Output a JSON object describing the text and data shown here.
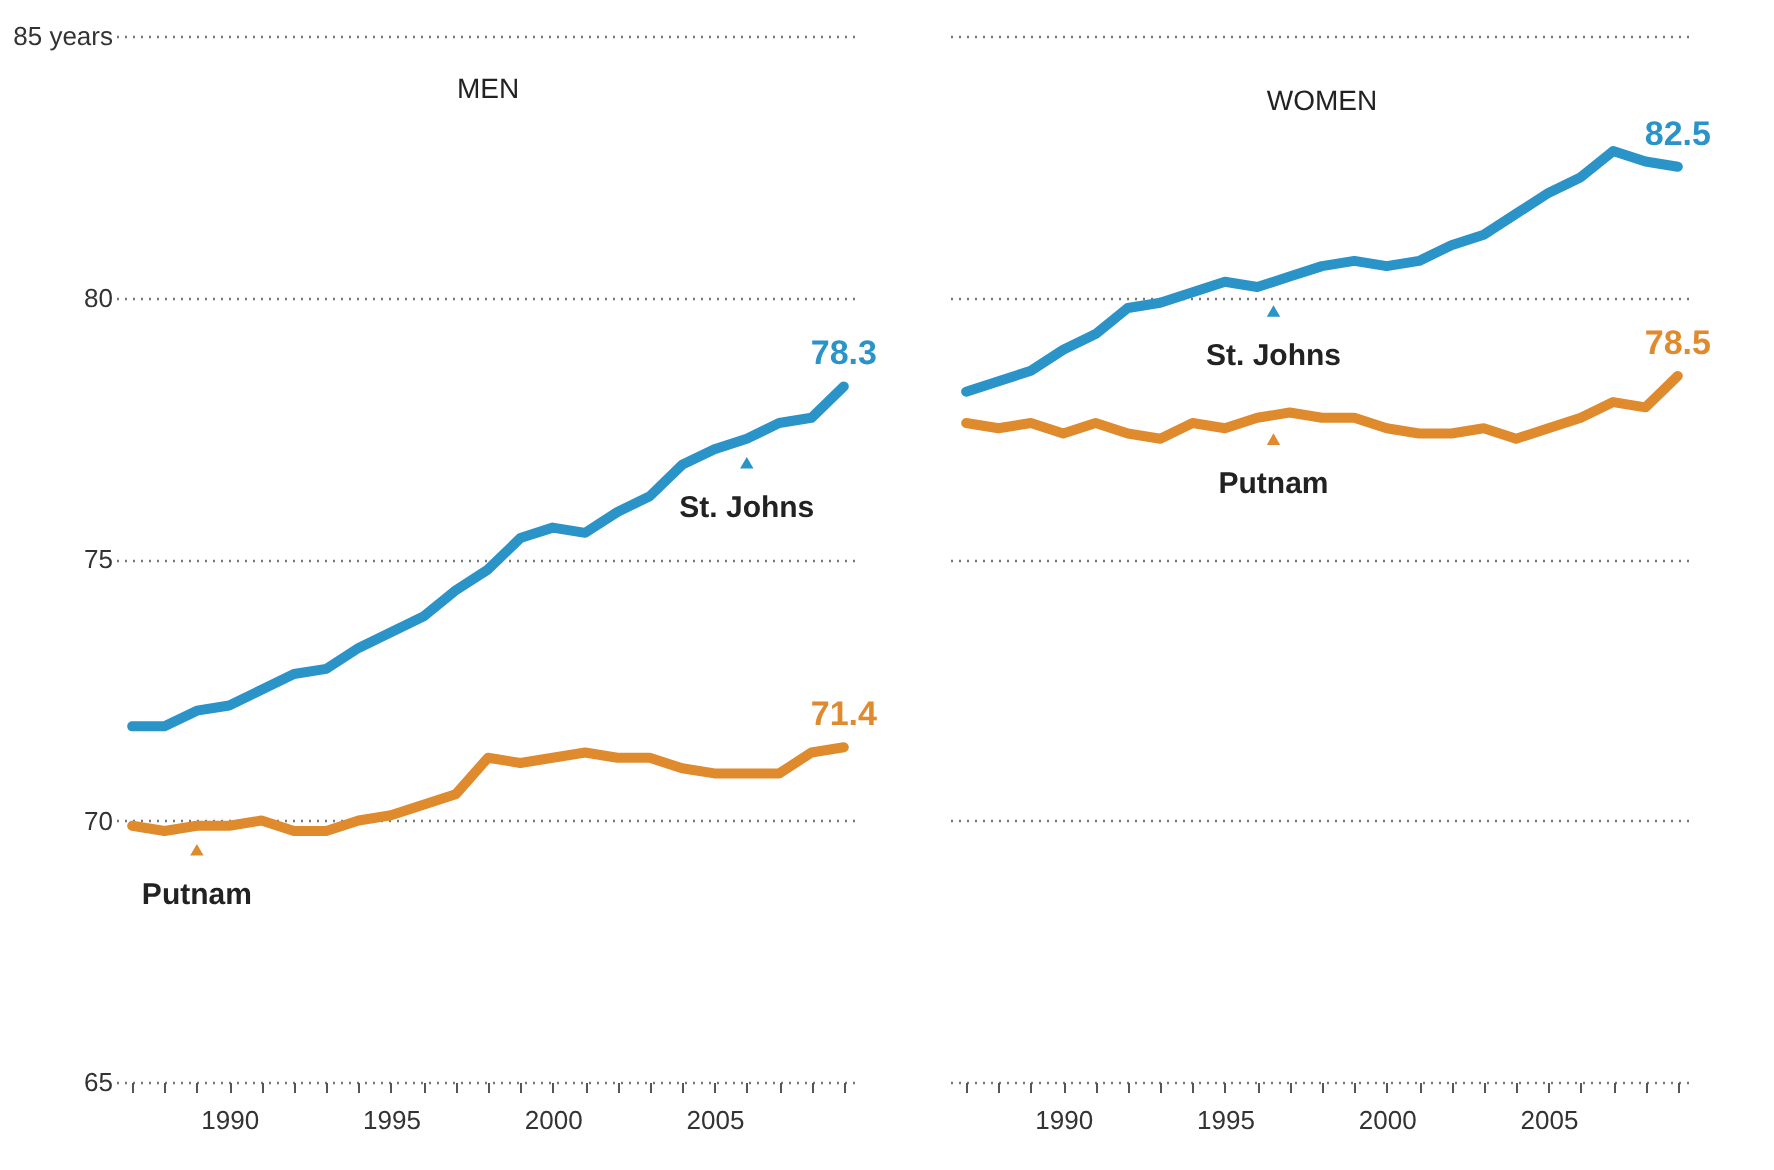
{
  "chart_data": [
    {
      "type": "line",
      "title": "MEN",
      "x": [
        1987,
        1988,
        1989,
        1990,
        1991,
        1992,
        1993,
        1994,
        1995,
        1996,
        1997,
        1998,
        1999,
        2000,
        2001,
        2002,
        2003,
        2004,
        2005,
        2006,
        2007,
        2008,
        2009
      ],
      "series": [
        {
          "color": "#2a93c8",
          "values": [
            71.8,
            71.8,
            72.1,
            72.2,
            72.5,
            72.8,
            72.9,
            73.3,
            73.6,
            73.9,
            74.4,
            74.8,
            75.4,
            75.6,
            75.5,
            75.9,
            76.2,
            76.8,
            77.1,
            77.3,
            77.6,
            77.7,
            78.3
          ],
          "value_labels": [
            null,
            null,
            null,
            null,
            null,
            null,
            null,
            null,
            null,
            null,
            null,
            null,
            null,
            null,
            null,
            null,
            null,
            null,
            null,
            null,
            null,
            null,
            "78.3"
          ]
        },
        {
          "color": "#e08a2e",
          "values": [
            69.9,
            69.8,
            69.9,
            69.9,
            70.0,
            69.8,
            69.8,
            70.0,
            70.1,
            70.3,
            70.5,
            71.2,
            71.1,
            71.2,
            71.3,
            71.2,
            71.2,
            71.0,
            70.9,
            70.9,
            70.9,
            71.3,
            71.4
          ],
          "value_labels": [
            null,
            null,
            null,
            null,
            null,
            null,
            null,
            null,
            null,
            null,
            null,
            null,
            null,
            null,
            null,
            null,
            null,
            null,
            null,
            null,
            null,
            null,
            "71.4"
          ]
        }
      ],
      "annotations": [
        {
          "text": "St. Johns",
          "x": 2006,
          "y": 77.3
        },
        {
          "text": "Putnam",
          "x": 1989,
          "y": 69.9
        }
      ],
      "xlim": [
        1986.5,
        2009.5
      ],
      "xticks": [
        {
          "value": 1987,
          "label": null
        },
        {
          "value": 1988,
          "label": null
        },
        {
          "value": 1989,
          "label": null
        },
        1990,
        {
          "value": 1991,
          "label": null
        },
        {
          "value": 1992,
          "label": null
        },
        {
          "value": 1993,
          "label": null
        },
        {
          "value": 1994,
          "label": null
        },
        1995,
        {
          "value": 1996,
          "label": null
        },
        {
          "value": 1997,
          "label": null
        },
        {
          "value": 1998,
          "label": null
        },
        {
          "value": 1999,
          "label": null
        },
        2000,
        {
          "value": 2001,
          "label": null
        },
        {
          "value": 2002,
          "label": null
        },
        {
          "value": 2003,
          "label": null
        },
        {
          "value": 2004,
          "label": null
        },
        2005,
        {
          "value": 2006,
          "label": null
        },
        {
          "value": 2007,
          "label": null
        },
        {
          "value": 2008,
          "label": null
        },
        {
          "value": 2009,
          "label": null
        }
      ],
      "ylim": [
        65,
        85
      ],
      "yticks": [
        65,
        70,
        75,
        80,
        {
          "value": 85,
          "label": "85 years"
        }
      ],
      "grid": "y",
      "line_style": "solid"
    },
    {
      "type": "line",
      "title": "WOMEN",
      "x": [
        1987,
        1988,
        1989,
        1990,
        1991,
        1992,
        1993,
        1994,
        1995,
        1996,
        1997,
        1998,
        1999,
        2000,
        2001,
        2002,
        2003,
        2004,
        2005,
        2006,
        2007,
        2008,
        2009
      ],
      "series": [
        {
          "color": "#2a93c8",
          "values": [
            78.2,
            78.4,
            78.6,
            79.0,
            79.3,
            79.8,
            79.9,
            80.1,
            80.3,
            80.2,
            80.4,
            80.6,
            80.7,
            80.6,
            80.7,
            81.0,
            81.2,
            81.6,
            82.0,
            82.3,
            82.8,
            82.6,
            82.5
          ],
          "value_labels": [
            null,
            null,
            null,
            null,
            null,
            null,
            null,
            null,
            null,
            null,
            null,
            null,
            null,
            null,
            null,
            null,
            null,
            null,
            null,
            null,
            null,
            null,
            "82.5"
          ]
        },
        {
          "color": "#e08a2e",
          "values": [
            77.6,
            77.5,
            77.6,
            77.4,
            77.6,
            77.4,
            77.3,
            77.6,
            77.5,
            77.7,
            77.8,
            77.7,
            77.7,
            77.5,
            77.4,
            77.4,
            77.5,
            77.3,
            77.5,
            77.7,
            78.0,
            77.9,
            78.5
          ],
          "value_labels": [
            null,
            null,
            null,
            null,
            null,
            null,
            null,
            null,
            null,
            null,
            null,
            null,
            null,
            null,
            null,
            null,
            null,
            null,
            null,
            null,
            null,
            null,
            "78.5"
          ]
        }
      ],
      "annotations": [
        {
          "text": "St. Johns",
          "x": 1996.5,
          "y": 80.2
        },
        {
          "text": "Putnam",
          "x": 1996.5,
          "y": 77.75
        }
      ],
      "xlim": [
        1986.5,
        2009.5
      ],
      "xticks": [
        {
          "value": 1987,
          "label": null
        },
        {
          "value": 1988,
          "label": null
        },
        {
          "value": 1989,
          "label": null
        },
        1990,
        {
          "value": 1991,
          "label": null
        },
        {
          "value": 1992,
          "label": null
        },
        {
          "value": 1993,
          "label": null
        },
        {
          "value": 1994,
          "label": null
        },
        1995,
        {
          "value": 1996,
          "label": null
        },
        {
          "value": 1997,
          "label": null
        },
        {
          "value": 1998,
          "label": null
        },
        {
          "value": 1999,
          "label": null
        },
        2000,
        {
          "value": 2001,
          "label": null
        },
        {
          "value": 2002,
          "label": null
        },
        {
          "value": 2003,
          "label": null
        },
        {
          "value": 2004,
          "label": null
        },
        2005,
        {
          "value": 2006,
          "label": null
        },
        {
          "value": 2007,
          "label": null
        },
        {
          "value": 2008,
          "label": null
        },
        {
          "value": 2009,
          "label": null
        }
      ],
      "ylim": [
        65,
        85
      ],
      "yticks": [
        65,
        70,
        75,
        80,
        85
      ],
      "grid": "y",
      "tick_labels": "x",
      "line_style": "solid"
    }
  ]
}
